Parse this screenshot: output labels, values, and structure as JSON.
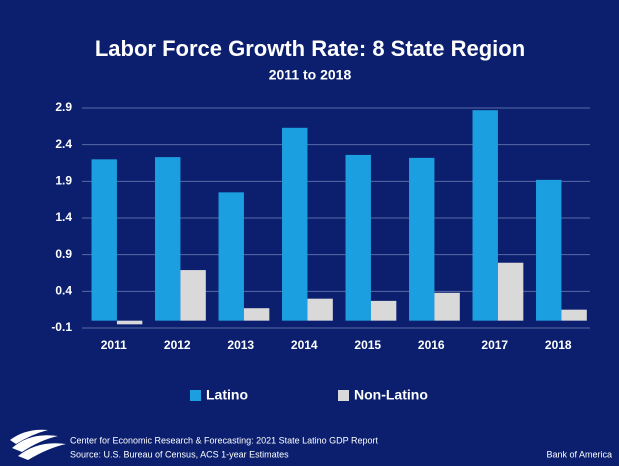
{
  "chart_data": {
    "type": "bar",
    "title": "Labor Force Growth Rate: 8 State Region",
    "subtitle": "2011 to 2018",
    "categories": [
      "2011",
      "2012",
      "2013",
      "2014",
      "2015",
      "2016",
      "2017",
      "2018"
    ],
    "series": [
      {
        "name": "Latino",
        "color": "#1b9fe0",
        "values": [
          2.2,
          2.23,
          1.75,
          2.63,
          2.26,
          2.22,
          2.87,
          1.92
        ]
      },
      {
        "name": "Non-Latino",
        "color": "#d9d9d9",
        "values": [
          -0.05,
          0.69,
          0.17,
          0.3,
          0.27,
          0.38,
          0.79,
          0.15
        ]
      }
    ],
    "ylim": [
      -0.1,
      2.9
    ],
    "yticks": [
      -0.1,
      0.4,
      0.9,
      1.4,
      1.9,
      2.4,
      2.9
    ],
    "grid": true,
    "legend": "bottom"
  },
  "footer": {
    "report": "Center for Economic Research & Forecasting: 2021 State Latino GDP Report",
    "source": "Source: U.S. Bureau of Census, ACS 1-year Estimates",
    "brand": "Bank of America"
  }
}
